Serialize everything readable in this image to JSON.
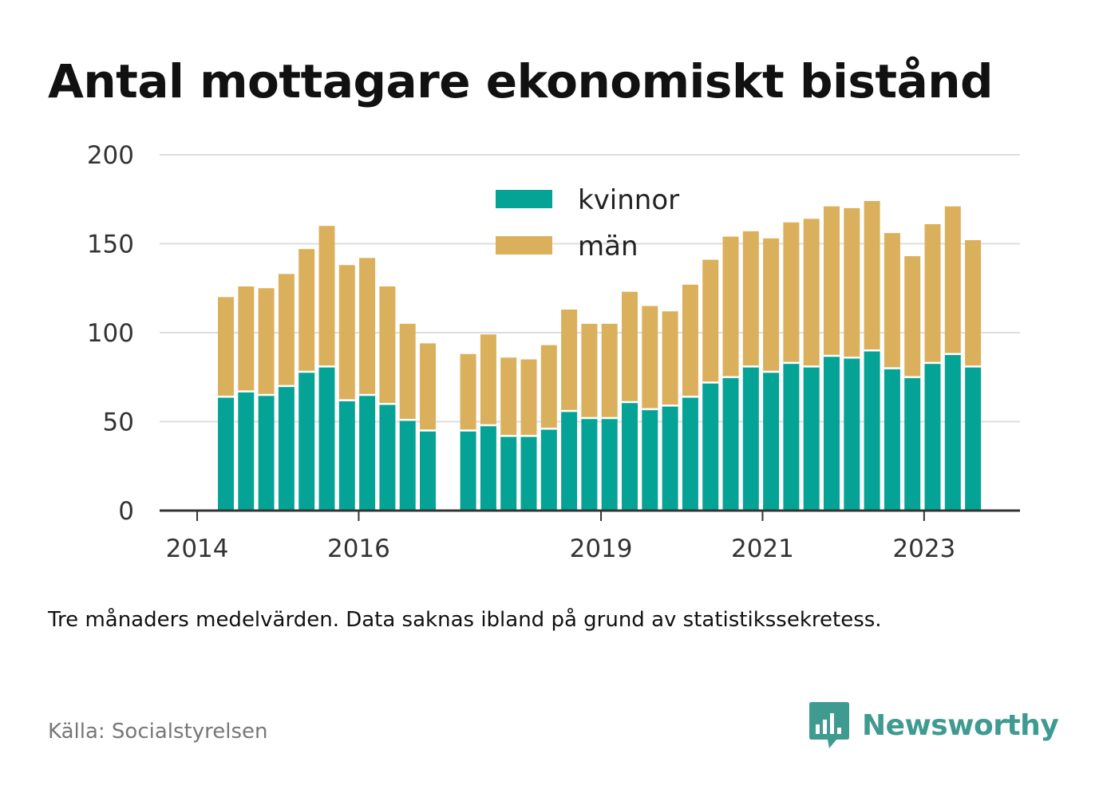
{
  "title": "Antal mottagare ekonomiskt bistånd",
  "note": "Tre månaders medelvärden. Data saknas ibland på grund av statistikssekretess.",
  "source": "Källa: Socialstyrelsen",
  "brand": {
    "name": "Newsworthy",
    "icon": "bar-chart-speech-bubble-icon"
  },
  "colors": {
    "kvinnor": "#05a396",
    "man": "#dbb05c",
    "grid": "#dddddd",
    "axis": "#333333",
    "brand": "#3f9a90"
  },
  "chart_data": {
    "type": "bar",
    "stacked": true,
    "ylim": [
      0,
      200
    ],
    "yticks": [
      0,
      50,
      100,
      150,
      200
    ],
    "xticks": [
      "2014",
      "2016",
      "2019",
      "2021",
      "2023"
    ],
    "xlabel": "",
    "ylabel": "",
    "grid": true,
    "legend_position": "top-center",
    "categories": [
      "2014 Q2",
      "2014 Q3",
      "2014 Q4",
      "2015 Q1",
      "2015 Q2",
      "2015 Q3",
      "2015 Q4",
      "2016 Q1",
      "2016 Q2",
      "2016 Q3",
      "2016 Q4",
      "2017 Q1",
      "2017 Q2",
      "2017 Q3",
      "2017 Q4",
      "2018 Q1",
      "2018 Q2",
      "2018 Q3",
      "2018 Q4",
      "2019 Q1",
      "2019 Q2",
      "2019 Q3",
      "2019 Q4",
      "2020 Q1",
      "2020 Q2",
      "2020 Q3",
      "2020 Q4",
      "2021 Q1",
      "2021 Q2",
      "2021 Q3",
      "2021 Q4",
      "2022 Q1",
      "2022 Q2",
      "2022 Q3",
      "2022 Q4",
      "2023 Q1",
      "2023 Q2",
      "2023 Q3"
    ],
    "series": [
      {
        "name": "kvinnor",
        "values": [
          64,
          67,
          65,
          70,
          78,
          81,
          62,
          65,
          60,
          51,
          45,
          null,
          45,
          48,
          42,
          42,
          46,
          56,
          52,
          52,
          61,
          57,
          59,
          64,
          72,
          75,
          81,
          78,
          83,
          81,
          87,
          86,
          90,
          80,
          75,
          83,
          88,
          81
        ]
      },
      {
        "name": "män",
        "values": [
          56,
          59,
          60,
          63,
          69,
          79,
          76,
          77,
          66,
          54,
          49,
          null,
          43,
          51,
          44,
          43,
          47,
          57,
          53,
          53,
          62,
          58,
          53,
          63,
          69,
          79,
          76,
          75,
          79,
          83,
          84,
          84,
          84,
          76,
          68,
          78,
          83,
          71
        ]
      }
    ]
  }
}
